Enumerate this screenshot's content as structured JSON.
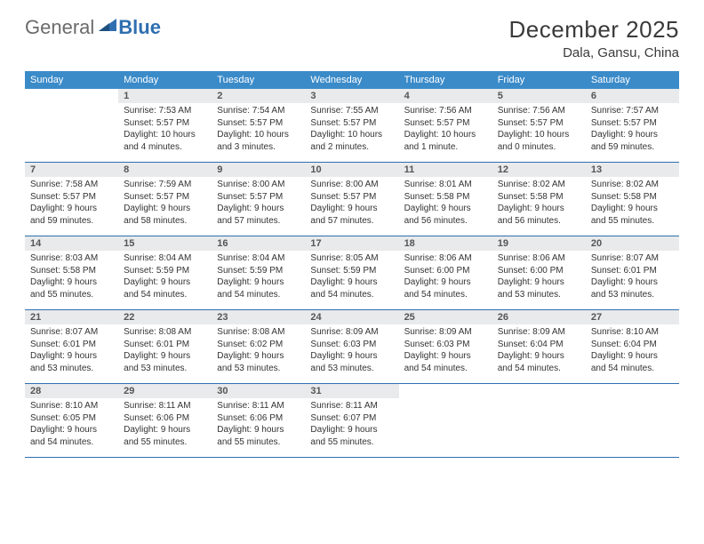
{
  "logo": {
    "part1": "General",
    "part2": "Blue"
  },
  "title": "December 2025",
  "location": "Dala, Gansu, China",
  "colors": {
    "header_bg": "#3b8bc9",
    "divider": "#2f6fb0",
    "daynum_bg": "#e9eaeb"
  },
  "dow": [
    "Sunday",
    "Monday",
    "Tuesday",
    "Wednesday",
    "Thursday",
    "Friday",
    "Saturday"
  ],
  "weeks": [
    [
      null,
      {
        "n": "1",
        "sr": "7:53 AM",
        "ss": "5:57 PM",
        "dl": "10 hours and 4 minutes."
      },
      {
        "n": "2",
        "sr": "7:54 AM",
        "ss": "5:57 PM",
        "dl": "10 hours and 3 minutes."
      },
      {
        "n": "3",
        "sr": "7:55 AM",
        "ss": "5:57 PM",
        "dl": "10 hours and 2 minutes."
      },
      {
        "n": "4",
        "sr": "7:56 AM",
        "ss": "5:57 PM",
        "dl": "10 hours and 1 minute."
      },
      {
        "n": "5",
        "sr": "7:56 AM",
        "ss": "5:57 PM",
        "dl": "10 hours and 0 minutes."
      },
      {
        "n": "6",
        "sr": "7:57 AM",
        "ss": "5:57 PM",
        "dl": "9 hours and 59 minutes."
      }
    ],
    [
      {
        "n": "7",
        "sr": "7:58 AM",
        "ss": "5:57 PM",
        "dl": "9 hours and 59 minutes."
      },
      {
        "n": "8",
        "sr": "7:59 AM",
        "ss": "5:57 PM",
        "dl": "9 hours and 58 minutes."
      },
      {
        "n": "9",
        "sr": "8:00 AM",
        "ss": "5:57 PM",
        "dl": "9 hours and 57 minutes."
      },
      {
        "n": "10",
        "sr": "8:00 AM",
        "ss": "5:57 PM",
        "dl": "9 hours and 57 minutes."
      },
      {
        "n": "11",
        "sr": "8:01 AM",
        "ss": "5:58 PM",
        "dl": "9 hours and 56 minutes."
      },
      {
        "n": "12",
        "sr": "8:02 AM",
        "ss": "5:58 PM",
        "dl": "9 hours and 56 minutes."
      },
      {
        "n": "13",
        "sr": "8:02 AM",
        "ss": "5:58 PM",
        "dl": "9 hours and 55 minutes."
      }
    ],
    [
      {
        "n": "14",
        "sr": "8:03 AM",
        "ss": "5:58 PM",
        "dl": "9 hours and 55 minutes."
      },
      {
        "n": "15",
        "sr": "8:04 AM",
        "ss": "5:59 PM",
        "dl": "9 hours and 54 minutes."
      },
      {
        "n": "16",
        "sr": "8:04 AM",
        "ss": "5:59 PM",
        "dl": "9 hours and 54 minutes."
      },
      {
        "n": "17",
        "sr": "8:05 AM",
        "ss": "5:59 PM",
        "dl": "9 hours and 54 minutes."
      },
      {
        "n": "18",
        "sr": "8:06 AM",
        "ss": "6:00 PM",
        "dl": "9 hours and 54 minutes."
      },
      {
        "n": "19",
        "sr": "8:06 AM",
        "ss": "6:00 PM",
        "dl": "9 hours and 53 minutes."
      },
      {
        "n": "20",
        "sr": "8:07 AM",
        "ss": "6:01 PM",
        "dl": "9 hours and 53 minutes."
      }
    ],
    [
      {
        "n": "21",
        "sr": "8:07 AM",
        "ss": "6:01 PM",
        "dl": "9 hours and 53 minutes."
      },
      {
        "n": "22",
        "sr": "8:08 AM",
        "ss": "6:01 PM",
        "dl": "9 hours and 53 minutes."
      },
      {
        "n": "23",
        "sr": "8:08 AM",
        "ss": "6:02 PM",
        "dl": "9 hours and 53 minutes."
      },
      {
        "n": "24",
        "sr": "8:09 AM",
        "ss": "6:03 PM",
        "dl": "9 hours and 53 minutes."
      },
      {
        "n": "25",
        "sr": "8:09 AM",
        "ss": "6:03 PM",
        "dl": "9 hours and 54 minutes."
      },
      {
        "n": "26",
        "sr": "8:09 AM",
        "ss": "6:04 PM",
        "dl": "9 hours and 54 minutes."
      },
      {
        "n": "27",
        "sr": "8:10 AM",
        "ss": "6:04 PM",
        "dl": "9 hours and 54 minutes."
      }
    ],
    [
      {
        "n": "28",
        "sr": "8:10 AM",
        "ss": "6:05 PM",
        "dl": "9 hours and 54 minutes."
      },
      {
        "n": "29",
        "sr": "8:11 AM",
        "ss": "6:06 PM",
        "dl": "9 hours and 55 minutes."
      },
      {
        "n": "30",
        "sr": "8:11 AM",
        "ss": "6:06 PM",
        "dl": "9 hours and 55 minutes."
      },
      {
        "n": "31",
        "sr": "8:11 AM",
        "ss": "6:07 PM",
        "dl": "9 hours and 55 minutes."
      },
      null,
      null,
      null
    ]
  ],
  "labels": {
    "sunrise": "Sunrise:",
    "sunset": "Sunset:",
    "daylight": "Daylight:"
  }
}
